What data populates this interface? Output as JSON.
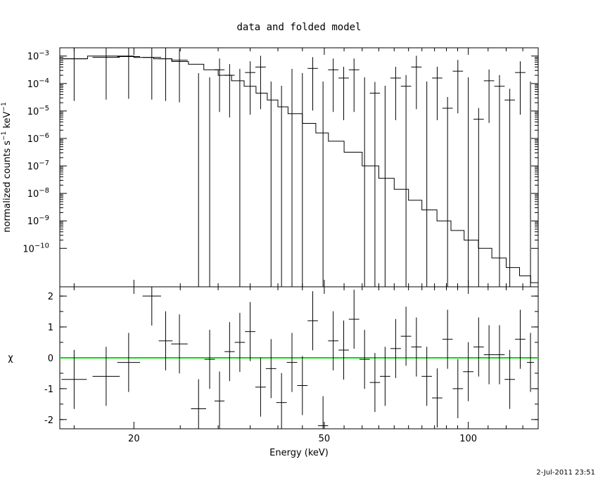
{
  "chart_data": [
    {
      "type": "scatter",
      "title": "data and folded model",
      "xlabel": "",
      "ylabel": "normalized counts s",
      "ylabel_sup1": "−1",
      "ylabel_mid": " keV",
      "ylabel_sup2": "−1",
      "x_scale": "log",
      "y_scale": "log",
      "xlim": [
        14,
        140
      ],
      "ylim_exponents": [
        -11.4,
        -2.7
      ],
      "ytick_exponents": [
        -10,
        -9,
        -8,
        -7,
        -6,
        -5,
        -4,
        -3
      ],
      "ytick_base": "10",
      "series": [
        {
          "style": "crosses",
          "x": [
            15.0,
            17.5,
            19.5,
            21.8,
            23.3,
            24.9,
            27.3,
            28.8,
            30.2,
            31.7,
            33.3,
            35.0,
            36.8,
            38.7,
            40.7,
            42.8,
            45.0,
            47.3,
            49.7,
            52.2,
            54.9,
            57.7,
            60.7,
            63.8,
            67.0,
            70.5,
            74.1,
            77.9,
            81.9,
            86.1,
            90.5,
            95.1,
            100.0,
            105.1,
            110.5,
            116.2,
            122.1,
            128.4,
            134.9
          ],
          "y_exp": [
            -3.1,
            -3.05,
            -3.02,
            -3.05,
            -3.1,
            -3.15,
            -11.4,
            -11.4,
            -3.5,
            -3.7,
            -11.4,
            -3.6,
            -3.4,
            -11.4,
            -11.4,
            -11.4,
            -11.4,
            -3.45,
            -11.4,
            -3.5,
            -3.8,
            -3.5,
            -11.4,
            -4.35,
            -11.4,
            -3.8,
            -4.1,
            -3.4,
            -11.4,
            -3.8,
            -4.9,
            -3.55,
            -11.4,
            -5.3,
            -3.9,
            -4.1,
            -4.6,
            -3.6,
            -11.4
          ]
        },
        {
          "style": "step",
          "name": "",
          "x": [
            14.0,
            16.0,
            18.0,
            20.0,
            22.0,
            24.0,
            26.0,
            28.0,
            30.0,
            32.0,
            34.0,
            36.0,
            38.0,
            40.0,
            42.0,
            45.0,
            48.0,
            51.0,
            55.0,
            60.0,
            65.0,
            70.0,
            75.0,
            80.0,
            86.0,
            92.0,
            98.0,
            105.0,
            112.0,
            120.0,
            128.0,
            135.0,
            140.0
          ],
          "y_exp": [
            -3.1,
            -3.0,
            -3.0,
            -3.05,
            -3.1,
            -3.2,
            -3.3,
            -3.5,
            -3.7,
            -3.9,
            -4.1,
            -4.35,
            -4.6,
            -4.85,
            -5.1,
            -5.45,
            -5.8,
            -6.1,
            -6.5,
            -7.0,
            -7.45,
            -7.85,
            -8.25,
            -8.6,
            -9.0,
            -9.35,
            -9.7,
            -10.0,
            -10.35,
            -10.7,
            -11.0,
            -11.25,
            -11.35
          ]
        }
      ]
    },
    {
      "type": "scatter",
      "xlabel": "Energy (keV)",
      "ylabel": "χ",
      "x_scale": "log",
      "xlim": [
        14,
        140
      ],
      "ylim": [
        -2.3,
        2.3
      ],
      "xticks": [
        20,
        50,
        100
      ],
      "yticks": [
        -2,
        -1,
        0,
        1,
        2
      ],
      "reference_line": {
        "y": 0,
        "color": "#00e000"
      },
      "series": [
        {
          "style": "crosses",
          "x": [
            15.0,
            17.5,
            19.5,
            21.8,
            23.3,
            24.9,
            27.3,
            28.8,
            30.2,
            31.7,
            33.3,
            35.0,
            36.8,
            38.7,
            40.7,
            42.8,
            45.0,
            47.3,
            49.7,
            52.2,
            54.9,
            57.7,
            60.7,
            63.8,
            67.0,
            70.5,
            74.1,
            77.9,
            81.9,
            86.1,
            90.5,
            95.1,
            100.0,
            105.1,
            110.5,
            116.2,
            122.1,
            128.4,
            134.9
          ],
          "y": [
            -0.7,
            -0.6,
            -0.15,
            2.0,
            0.55,
            0.45,
            -1.65,
            -0.05,
            -1.4,
            0.2,
            0.5,
            0.85,
            -0.95,
            -0.35,
            -1.45,
            -0.15,
            -0.9,
            1.2,
            -2.2,
            0.55,
            0.25,
            1.25,
            -0.05,
            -0.8,
            -0.6,
            0.3,
            0.7,
            0.35,
            -0.6,
            -1.3,
            0.6,
            -1.0,
            -0.45,
            0.35,
            0.1,
            0.1,
            -0.7,
            0.6,
            -0.15
          ]
        }
      ]
    }
  ],
  "footer": {
    "timestamp": "2-Jul-2011 23:51"
  }
}
